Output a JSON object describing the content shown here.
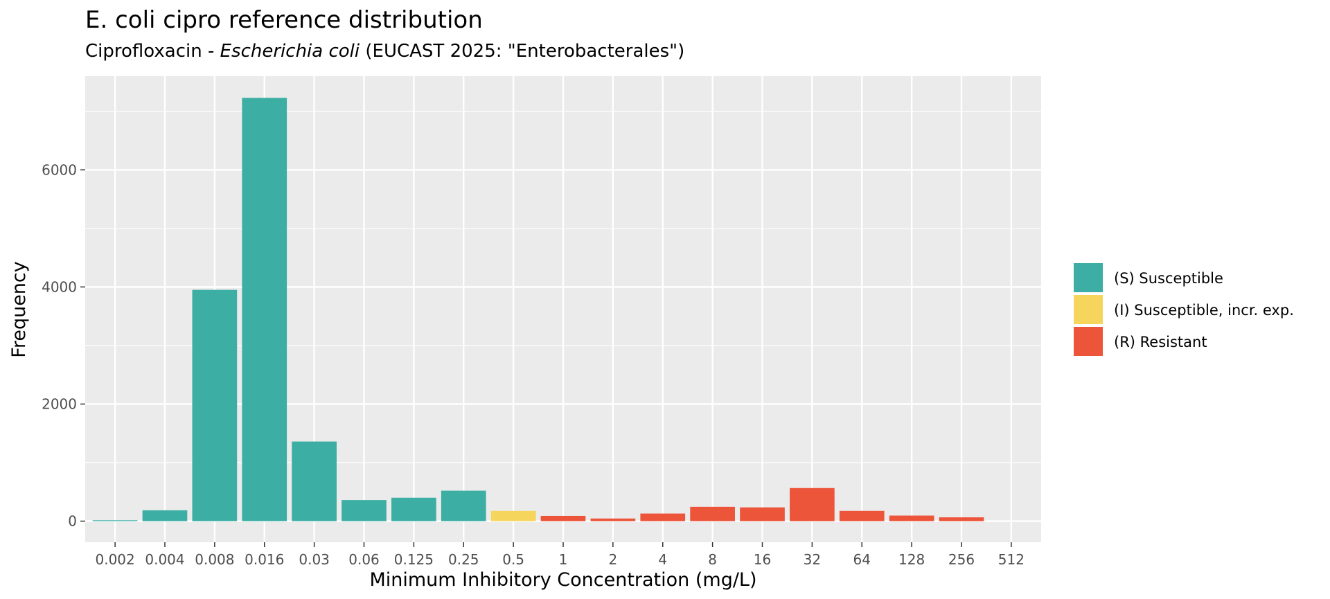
{
  "chart_data": {
    "type": "bar",
    "title": "E. coli cipro reference distribution",
    "subtitle": {
      "prefix": "Ciprofloxacin - ",
      "organism": "Escherichia coli",
      "suffix": " (EUCAST 2025: \"Enterobacterales\")"
    },
    "xlabel": "Minimum Inhibitory Concentration (mg/L)",
    "ylabel": "Frequency",
    "categories": [
      "0.002",
      "0.004",
      "0.008",
      "0.016",
      "0.03",
      "0.06",
      "0.125",
      "0.25",
      "0.5",
      "1",
      "2",
      "4",
      "8",
      "16",
      "32",
      "64",
      "128",
      "256",
      "512"
    ],
    "values": [
      15,
      185,
      3950,
      7230,
      1360,
      360,
      400,
      520,
      175,
      90,
      45,
      130,
      245,
      235,
      565,
      175,
      95,
      65,
      0
    ],
    "status": [
      "S",
      "S",
      "S",
      "S",
      "S",
      "S",
      "S",
      "S",
      "I",
      "R",
      "R",
      "R",
      "R",
      "R",
      "R",
      "R",
      "R",
      "R",
      "R"
    ],
    "ylim": [
      -360,
      7600
    ],
    "yticks": [
      0,
      2000,
      4000,
      6000
    ],
    "grid": true,
    "legend_position": "right",
    "legend": [
      {
        "key": "S",
        "label": "(S) Susceptible",
        "color": "#3CAEA3"
      },
      {
        "key": "I",
        "label": "(I) Susceptible, incr. exp.",
        "color": "#F6D55C"
      },
      {
        "key": "R",
        "label": "(R) Resistant",
        "color": "#ED553B"
      }
    ],
    "panel_background": "#EBEBEB",
    "grid_color": "#FFFFFF"
  }
}
